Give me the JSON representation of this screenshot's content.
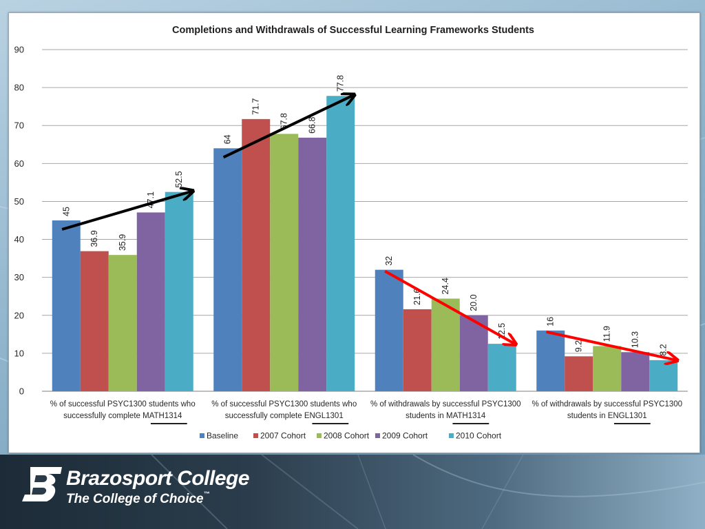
{
  "chart_data": {
    "type": "bar",
    "title": "Completions and Withdrawals of Successful Learning Frameworks Students",
    "xlabel": "",
    "ylabel": "",
    "ylim": [
      0,
      90
    ],
    "yticks": [
      "0",
      "10",
      "20",
      "30",
      "40",
      "50",
      "60",
      "70",
      "80",
      "90"
    ],
    "grid": true,
    "legend_position": "bottom",
    "categories": [
      {
        "line1": "% of successful PSYC1300 students who",
        "line2_prefix": "successfully complete ",
        "line2_course": "MATH1314"
      },
      {
        "line1": "% of successful PSYC1300 students who",
        "line2_prefix": "successfully complete ",
        "line2_course": "ENGL1301"
      },
      {
        "line1": "% of withdrawals by successful PSYC1300",
        "line2_prefix": "students in ",
        "line2_course": "MATH1314"
      },
      {
        "line1": "% of withdrawals by successful PSYC1300",
        "line2_prefix": "students in ",
        "line2_course": "ENGL1301"
      }
    ],
    "series": [
      {
        "name": "Baseline",
        "color": "#4f81bd",
        "values": [
          45,
          64,
          32,
          16
        ],
        "labels": [
          "45",
          "64",
          "32",
          "16"
        ]
      },
      {
        "name": "2007 Cohort",
        "color": "#c0504d",
        "values": [
          36.9,
          71.7,
          21.6,
          9.2
        ],
        "labels": [
          "36.9",
          "71.7",
          "21.6",
          "9.2"
        ]
      },
      {
        "name": "2008 Cohort",
        "color": "#9bbb59",
        "values": [
          35.9,
          67.8,
          24.4,
          11.9
        ],
        "labels": [
          "35.9",
          "67.8",
          "24.4",
          "11.9"
        ]
      },
      {
        "name": "2009 Cohort",
        "color": "#8064a2",
        "values": [
          47.1,
          66.8,
          20.0,
          10.3
        ],
        "labels": [
          "47.1",
          "66.8",
          "20.0",
          "10.3"
        ]
      },
      {
        "name": "2010 Cohort",
        "color": "#4bacc6",
        "values": [
          52.5,
          77.8,
          12.5,
          8.2
        ],
        "labels": [
          "52.5",
          "77.8",
          "12.5",
          "8.2"
        ]
      }
    ],
    "trend_arrows": [
      {
        "category": 0,
        "color": "#000000"
      },
      {
        "category": 1,
        "color": "#000000"
      },
      {
        "category": 2,
        "color": "#ff0000"
      },
      {
        "category": 3,
        "color": "#ff0000"
      }
    ]
  },
  "footer": {
    "brand_name": "Brazosport College",
    "tagline": "The College of Choice",
    "trademark": "™",
    "logo_letter": "B"
  }
}
